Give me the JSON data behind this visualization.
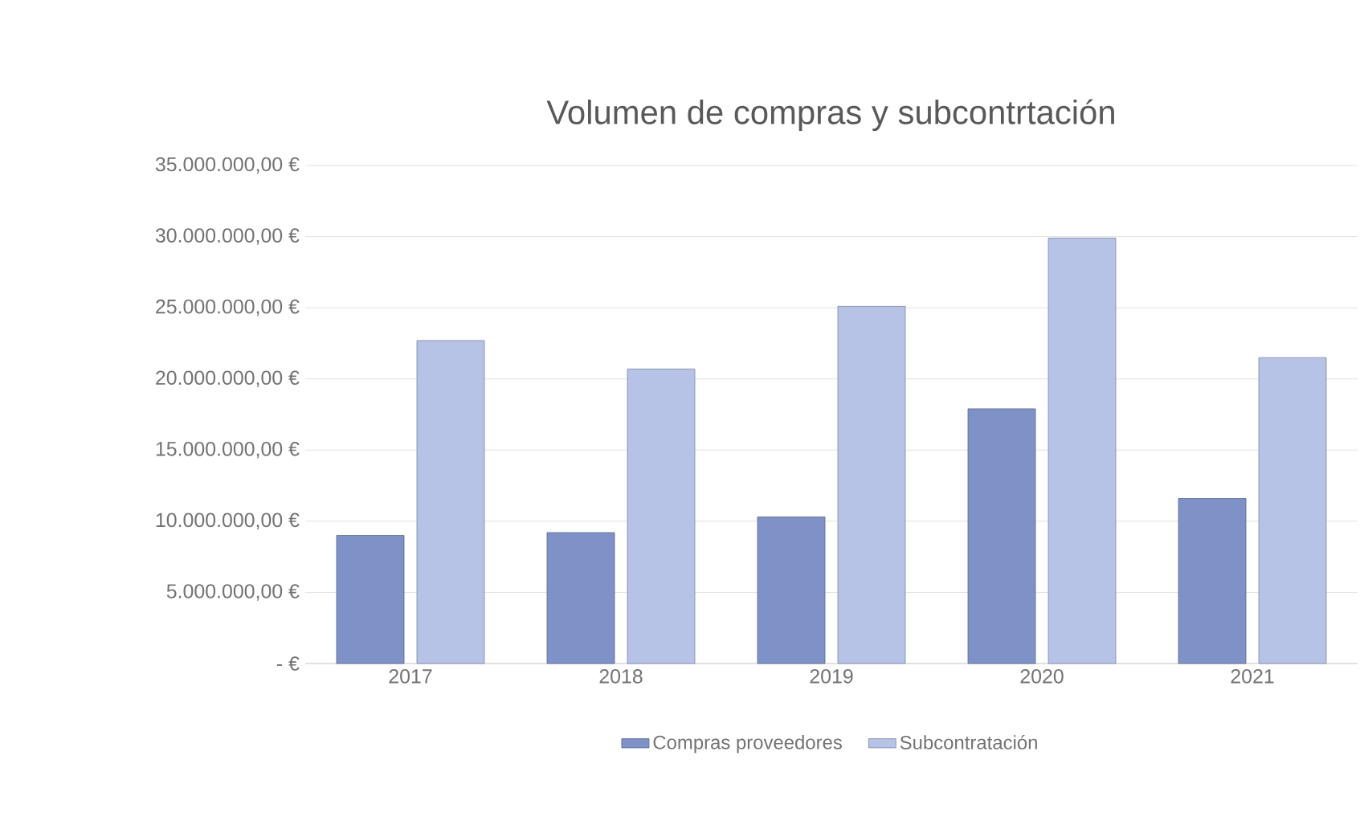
{
  "chart_data": {
    "type": "bar",
    "title": "Volumen  de compras  y subcontrtación",
    "categories": [
      "2017",
      "2018",
      "2019",
      "2020",
      "2021"
    ],
    "series": [
      {
        "name": "Compras proveedores",
        "color": "#7f92c8",
        "values": [
          9000000,
          9200000,
          10300000,
          17900000,
          11600000
        ]
      },
      {
        "name": "Subcontratación",
        "color": "#b6c2e6",
        "values": [
          22700000,
          20700000,
          25100000,
          29900000,
          21500000
        ]
      }
    ],
    "ylim": [
      0,
      35000000
    ],
    "yticks": [
      {
        "value": 0,
        "label": "-  €"
      },
      {
        "value": 5000000,
        "label": "5.000.000,00 €"
      },
      {
        "value": 10000000,
        "label": "10.000.000,00 €"
      },
      {
        "value": 15000000,
        "label": "15.000.000,00 €"
      },
      {
        "value": 20000000,
        "label": "20.000.000,00 €"
      },
      {
        "value": 25000000,
        "label": "25.000.000,00 €"
      },
      {
        "value": 30000000,
        "label": "30.000.000,00 €"
      },
      {
        "value": 35000000,
        "label": "35.000.000,00 €"
      }
    ],
    "grid": "y",
    "legend": "bottom"
  }
}
